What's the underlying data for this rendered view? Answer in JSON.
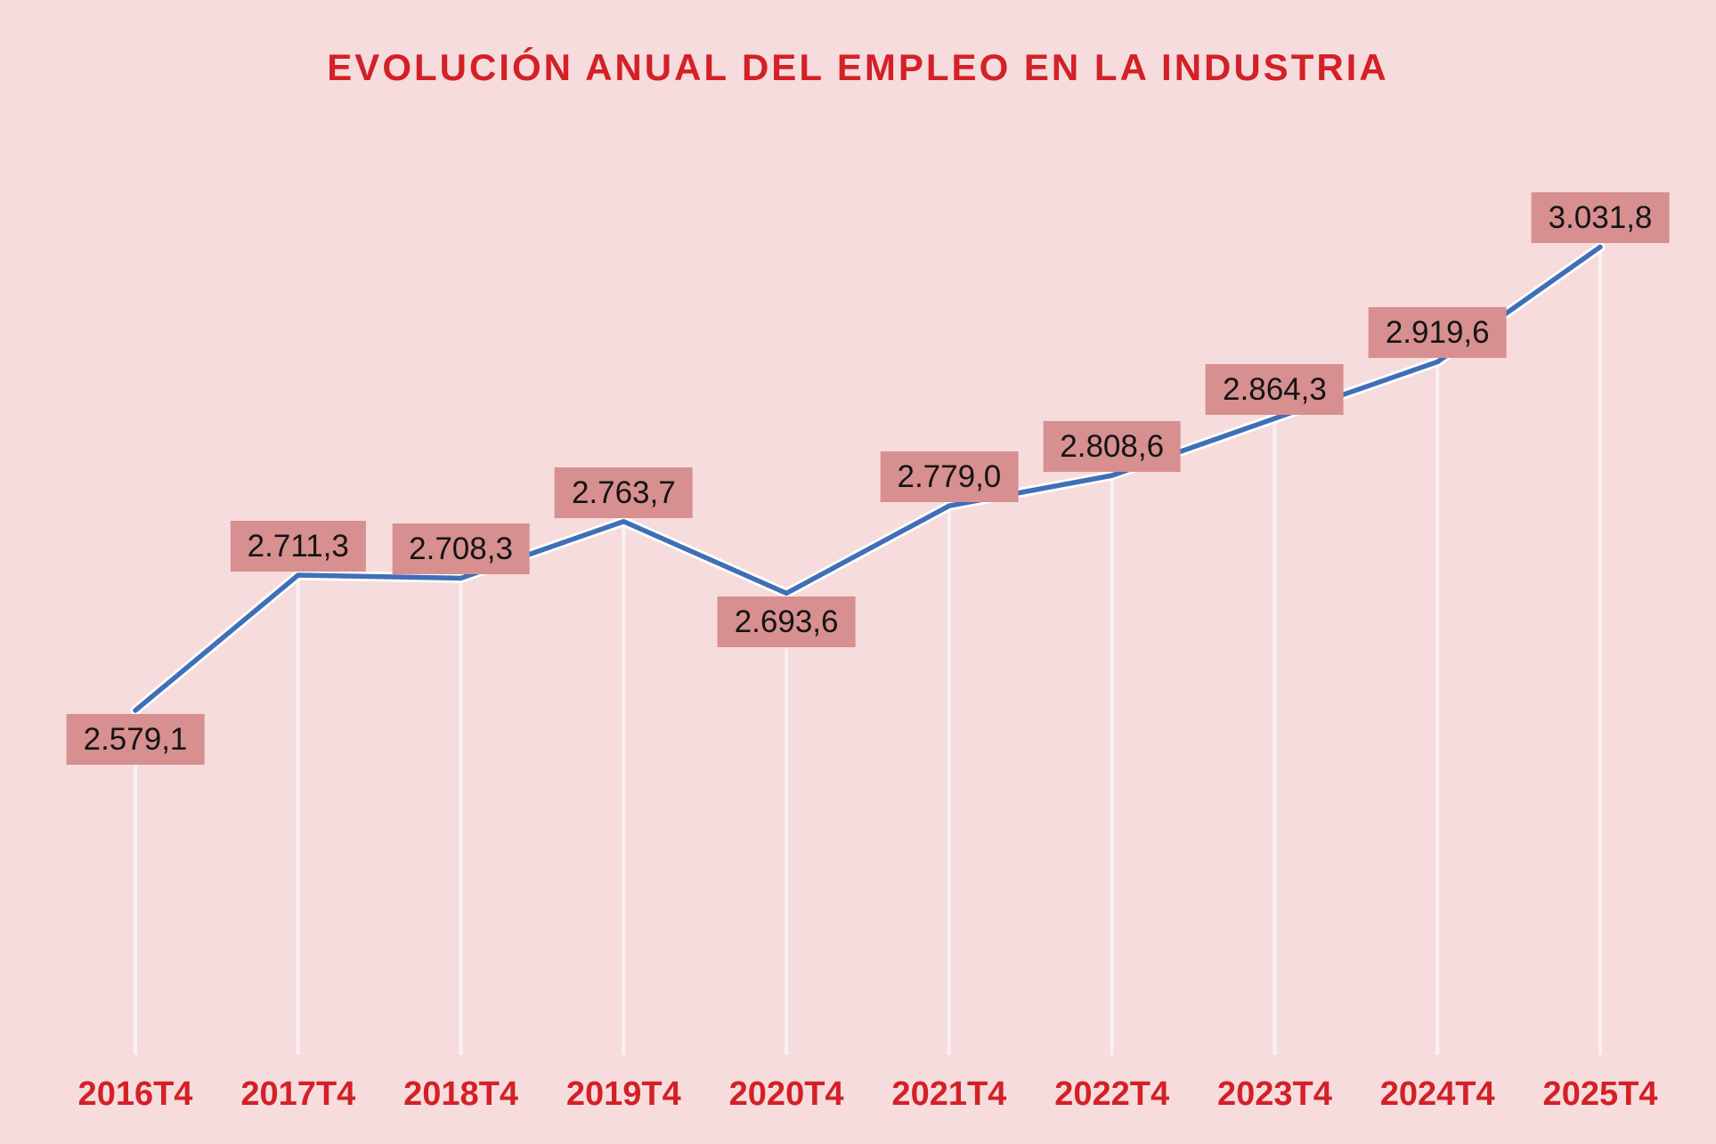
{
  "chart_data": {
    "type": "line",
    "title": "EVOLUCIÓN ANUAL DEL EMPLEO EN LA INDUSTRIA",
    "categories": [
      "2016T4",
      "2017T4",
      "2018T4",
      "2019T4",
      "2020T4",
      "2021T4",
      "2022T4",
      "2023T4",
      "2024T4",
      "2025T4"
    ],
    "values": [
      2579.1,
      2711.3,
      2708.3,
      2763.7,
      2693.6,
      2779.0,
      2808.6,
      2864.3,
      2919.6,
      3031.8
    ],
    "value_labels": [
      "2.579,1",
      "2.711,3",
      "2.708,3",
      "2.763,7",
      "2.693,6",
      "2.779,0",
      "2.808,6",
      "2.864,3",
      "2.919,6",
      "3.031,8"
    ],
    "label_positions": [
      "below",
      "above",
      "above",
      "above",
      "below",
      "above",
      "above",
      "above",
      "above",
      "above"
    ],
    "xlabel": "",
    "ylabel": "",
    "ylim": [
      2500,
      3100
    ],
    "grid": false,
    "legend": false,
    "colors": {
      "background": "#f6dcdc",
      "line": "#3f6fb6",
      "line_halo": "#ffffff",
      "label_box": "#d78f90",
      "label_text": "#141414",
      "title": "#d42027",
      "axis_text": "#d42027",
      "drop_line": "#ffffff"
    }
  }
}
